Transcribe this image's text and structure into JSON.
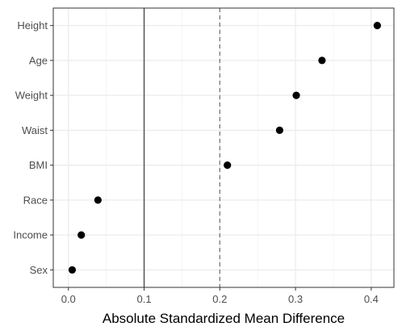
{
  "chart_data": {
    "type": "scatter",
    "title": "",
    "xlabel": "Absolute Standardized Mean Difference",
    "ylabel": "",
    "xlim": [
      -0.02,
      0.43
    ],
    "x_ticks": [
      0.0,
      0.1,
      0.2,
      0.3,
      0.4
    ],
    "x_tick_labels": [
      "0.0",
      "0.1",
      "0.2",
      "0.3",
      "0.4"
    ],
    "categories": [
      "Sex",
      "Income",
      "Race",
      "BMI",
      "Waist",
      "Weight",
      "Age",
      "Height"
    ],
    "values": [
      0.005,
      0.017,
      0.039,
      0.21,
      0.279,
      0.301,
      0.335,
      0.408
    ],
    "reference_lines": [
      {
        "x": 0.1,
        "style": "solid",
        "color": "#4d4d4d"
      },
      {
        "x": 0.2,
        "style": "dashed",
        "color": "#7f7f7f"
      }
    ],
    "grid": true,
    "point_color": "#000000"
  }
}
